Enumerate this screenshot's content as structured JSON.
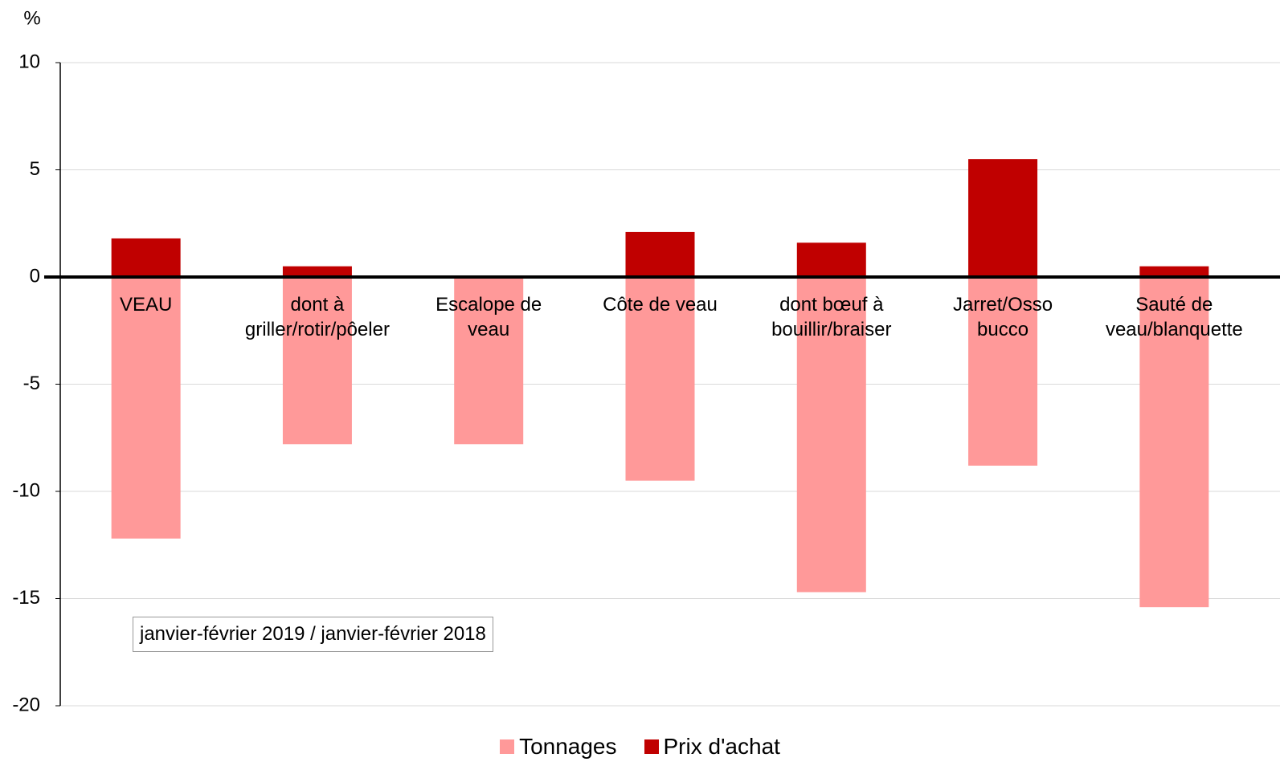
{
  "chart_data": {
    "type": "bar",
    "y_label": "%",
    "annotation": "janvier-février 2019 / janvier-février 2018",
    "categories": [
      "VEAU",
      "dont  à\ngriller/rotir/pôeler",
      "Escalope de\nveau",
      "Côte de veau",
      "dont bœuf à\nbouillir/braiser",
      "Jarret/Osso\nbucco",
      "Sauté de\nveau/blanquette"
    ],
    "series": [
      {
        "name": "Tonnages",
        "color": "#ff9999",
        "values": [
          -12.2,
          -7.8,
          -7.8,
          -9.5,
          -14.7,
          -8.8,
          -15.4
        ]
      },
      {
        "name": "Prix d'achat",
        "color": "#c00000",
        "values": [
          1.8,
          0.5,
          0,
          2.1,
          1.6,
          5.5,
          0.5
        ]
      }
    ],
    "ylim": [
      -20,
      10
    ],
    "yticks": [
      -20,
      -15,
      -10,
      -5,
      0,
      5,
      10
    ],
    "grid": true
  }
}
